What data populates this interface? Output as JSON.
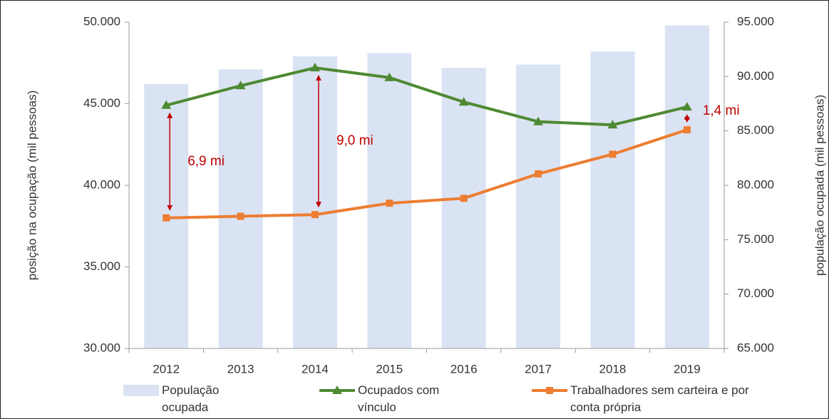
{
  "chart_data": {
    "type": "bar-line",
    "categories": [
      "2012",
      "2013",
      "2014",
      "2015",
      "2016",
      "2017",
      "2018",
      "2019"
    ],
    "series": [
      {
        "name": "População ocupada",
        "type": "bar",
        "axis": "y2",
        "color": "#dae3f3",
        "values": [
          89300,
          90650,
          91850,
          92150,
          90800,
          91100,
          92300,
          94700
        ]
      },
      {
        "name": "Ocupados com vínculo",
        "type": "line",
        "color": "#4e8a33",
        "values": [
          44900,
          46100,
          47200,
          46600,
          45100,
          43900,
          43700,
          44800
        ]
      },
      {
        "name": "Trabalhadores sem carteira e por conta própria",
        "type": "line",
        "color": "#ed7d31",
        "values": [
          38000,
          38100,
          38200,
          38900,
          39200,
          40700,
          41900,
          43400
        ]
      }
    ],
    "ylabel": "posição na ocupação (mil pessoas)",
    "y2label": "população ocupada (mil pessoas)",
    "ylim": [
      30000,
      50000
    ],
    "yticks": [
      {
        "value": 30000,
        "label": "30.000"
      },
      {
        "value": 35000,
        "label": "35.000"
      },
      {
        "value": 40000,
        "label": "40.000"
      },
      {
        "value": 45000,
        "label": "45.000"
      },
      {
        "value": 50000,
        "label": "50.000"
      }
    ],
    "y2lim": [
      65000,
      95000
    ],
    "y2ticks": [
      {
        "value": 65000,
        "label": "65.000"
      },
      {
        "value": 70000,
        "label": "70.000"
      },
      {
        "value": 75000,
        "label": "75.000"
      },
      {
        "value": 80000,
        "label": "80.000"
      },
      {
        "value": 85000,
        "label": "85.000"
      },
      {
        "value": 90000,
        "label": "90.000"
      },
      {
        "value": 95000,
        "label": "95.000"
      }
    ],
    "annotations": [
      {
        "text": "6,9 mi",
        "category": 0
      },
      {
        "text": "9,0 mi",
        "category": 2
      },
      {
        "text": "1,4 mi",
        "category": 7
      }
    ],
    "annotation_color": "#c00000"
  }
}
